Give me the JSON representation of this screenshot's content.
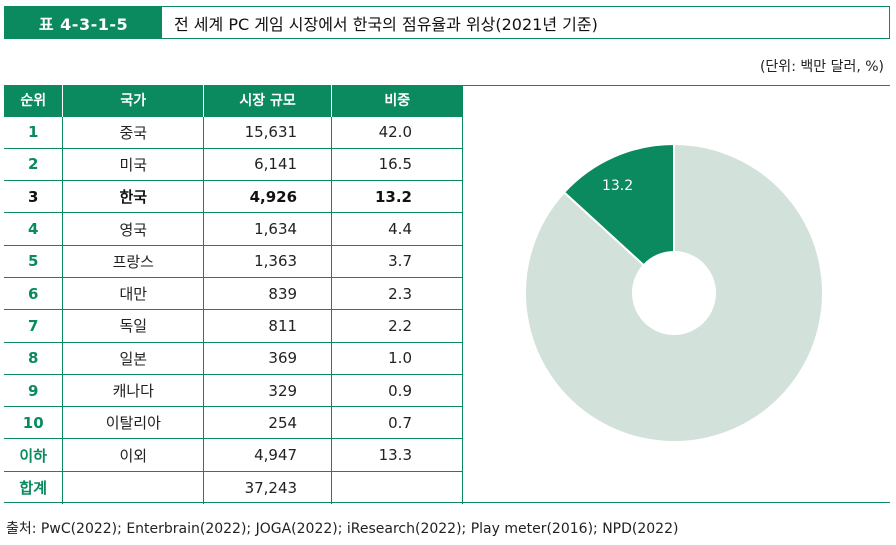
{
  "header": {
    "tag": "표 4-3-1-5",
    "title": "전 세계 PC 게임 시장에서 한국의 점유율과 위상(2021년 기준)"
  },
  "unit_note": "(단위: 백만 달러, %)",
  "table": {
    "columns": [
      "순위",
      "국가",
      "시장 규모",
      "비중"
    ],
    "rows": [
      {
        "rank": "1",
        "country": "중국",
        "size": "15,631",
        "share": "42.0"
      },
      {
        "rank": "2",
        "country": "미국",
        "size": "6,141",
        "share": "16.5"
      },
      {
        "rank": "3",
        "country": "한국",
        "size": "4,926",
        "share": "13.2"
      },
      {
        "rank": "4",
        "country": "영국",
        "size": "1,634",
        "share": "4.4"
      },
      {
        "rank": "5",
        "country": "프랑스",
        "size": "1,363",
        "share": "3.7"
      },
      {
        "rank": "6",
        "country": "대만",
        "size": "839",
        "share": "2.3"
      },
      {
        "rank": "7",
        "country": "독일",
        "size": "811",
        "share": "2.2"
      },
      {
        "rank": "8",
        "country": "일본",
        "size": "369",
        "share": "1.0"
      },
      {
        "rank": "9",
        "country": "캐나다",
        "size": "329",
        "share": "0.9"
      },
      {
        "rank": "10",
        "country": "이탈리아",
        "size": "254",
        "share": "0.7"
      },
      {
        "rank": "이하",
        "country": "이외",
        "size": "4,947",
        "share": "13.3"
      },
      {
        "rank": "합계",
        "country": "",
        "size": "37,243",
        "share": ""
      }
    ],
    "highlight_rank": "3"
  },
  "chart_data": {
    "type": "pie",
    "donut": true,
    "slices": [
      {
        "label": "한국",
        "value": 13.2,
        "display": "13.2",
        "color": "#0b8a5f"
      },
      {
        "label": "",
        "value": 86.8,
        "display": "",
        "color": "#d2e2db"
      }
    ],
    "start": "12 o'clock, counterclockwise for highlighted slice"
  },
  "source": "출처: PwC(2022); Enterbrain(2022); JOGA(2022); iResearch(2022); Play meter(2016); NPD(2022)"
}
